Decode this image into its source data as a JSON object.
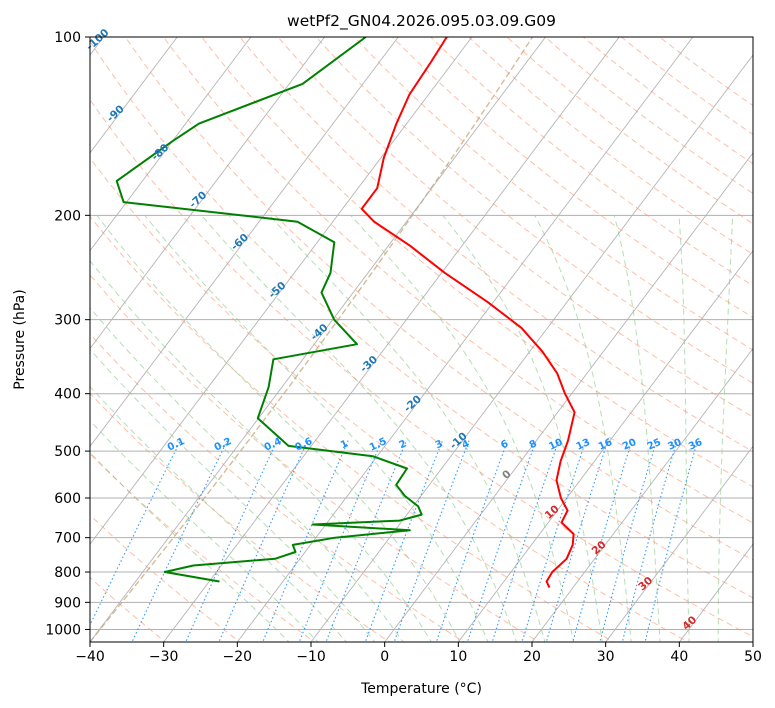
{
  "chart_data": {
    "type": "line",
    "subtype": "skew-T log-P diagram",
    "title": "wetPf2_GN04.2026.095.03.09.G09",
    "xlabel": "Temperature (°C)",
    "ylabel": "Pressure (hPa)",
    "xlim": [
      -40,
      50
    ],
    "ylim_pressure": [
      1050,
      100
    ],
    "y_scale": "log",
    "x_ticks": [
      -40,
      -30,
      -20,
      -10,
      0,
      10,
      20,
      30,
      40,
      50
    ],
    "y_ticks": [
      100,
      200,
      300,
      400,
      500,
      600,
      700,
      800,
      900,
      1000
    ],
    "grid": true,
    "series": [
      {
        "role": "temperature",
        "color": "#ff0000",
        "points": [
          [
            850,
            16.8
          ],
          [
            830,
            15.8
          ],
          [
            800,
            15.6
          ],
          [
            760,
            16.2
          ],
          [
            720,
            15.6
          ],
          [
            690,
            14.6
          ],
          [
            660,
            11.8
          ],
          [
            630,
            11.4
          ],
          [
            600,
            9.2
          ],
          [
            560,
            6.8
          ],
          [
            520,
            5.4
          ],
          [
            480,
            4.3
          ],
          [
            430,
            2.3
          ],
          [
            400,
            -0.9
          ],
          [
            370,
            -4.0
          ],
          [
            340,
            -8.2
          ],
          [
            310,
            -13.5
          ],
          [
            280,
            -20.8
          ],
          [
            250,
            -29.6
          ],
          [
            225,
            -37.1
          ],
          [
            205,
            -44.4
          ],
          [
            195,
            -47.4
          ],
          [
            180,
            -47.4
          ],
          [
            160,
            -49.6
          ],
          [
            140,
            -51.4
          ],
          [
            125,
            -52.6
          ],
          [
            110,
            -53.0
          ],
          [
            100,
            -53.4
          ]
        ]
      },
      {
        "role": "dewpoint",
        "color": "#008000",
        "points": [
          [
            830,
            -28.6
          ],
          [
            800,
            -37.0
          ],
          [
            780,
            -33.8
          ],
          [
            760,
            -23.4
          ],
          [
            740,
            -21.3
          ],
          [
            720,
            -22.4
          ],
          [
            700,
            -17.4
          ],
          [
            680,
            -8.0
          ],
          [
            665,
            -21.8
          ],
          [
            655,
            -10.4
          ],
          [
            640,
            -8.0
          ],
          [
            620,
            -9.3
          ],
          [
            595,
            -12.2
          ],
          [
            570,
            -14.5
          ],
          [
            535,
            -14.7
          ],
          [
            510,
            -20.6
          ],
          [
            490,
            -33.1
          ],
          [
            440,
            -40.1
          ],
          [
            390,
            -41.8
          ],
          [
            350,
            -44.0
          ],
          [
            330,
            -34.2
          ],
          [
            300,
            -39.8
          ],
          [
            270,
            -44.3
          ],
          [
            250,
            -45.1
          ],
          [
            222,
            -47.7
          ],
          [
            205,
            -54.8
          ],
          [
            190,
            -80.4
          ],
          [
            175,
            -83.5
          ],
          [
            150,
            -80.0
          ],
          [
            140,
            -78.2
          ],
          [
            120,
            -68.2
          ],
          [
            100,
            -64.4
          ]
        ]
      }
    ],
    "reference_lines": {
      "isotherm_color": "#a9a9a9",
      "dry_adiabat_color": "#ff7f50",
      "moist_adiabat_color": "#2ca02c",
      "mixing_ratio_color": "#1e90ff",
      "lcl_curve_color": "#d2b48c"
    },
    "isotherm_labels": [
      {
        "text": "-100",
        "color": "#1f77b4"
      },
      {
        "text": "-90",
        "color": "#1f77b4"
      },
      {
        "text": "-80",
        "color": "#1f77b4"
      },
      {
        "text": "-70",
        "color": "#1f77b4"
      },
      {
        "text": "-60",
        "color": "#1f77b4"
      },
      {
        "text": "-50",
        "color": "#1f77b4"
      },
      {
        "text": "-40",
        "color": "#1f77b4"
      },
      {
        "text": "-30",
        "color": "#1f77b4"
      },
      {
        "text": "-20",
        "color": "#1f77b4"
      },
      {
        "text": "-10",
        "color": "#1f77b4"
      },
      {
        "text": "0",
        "color": "#808080"
      },
      {
        "text": "10",
        "color": "#d62728"
      },
      {
        "text": "20",
        "color": "#d62728"
      },
      {
        "text": "30",
        "color": "#d62728"
      },
      {
        "text": "40",
        "color": "#d62728"
      }
    ],
    "mixing_ratio_labels": [
      "0.1",
      "0.2",
      "0.4",
      "0.6",
      "1",
      "1.5",
      "2",
      "3",
      "4",
      "6",
      "8",
      "10",
      "13",
      "16",
      "20",
      "25",
      "30",
      "36"
    ]
  }
}
